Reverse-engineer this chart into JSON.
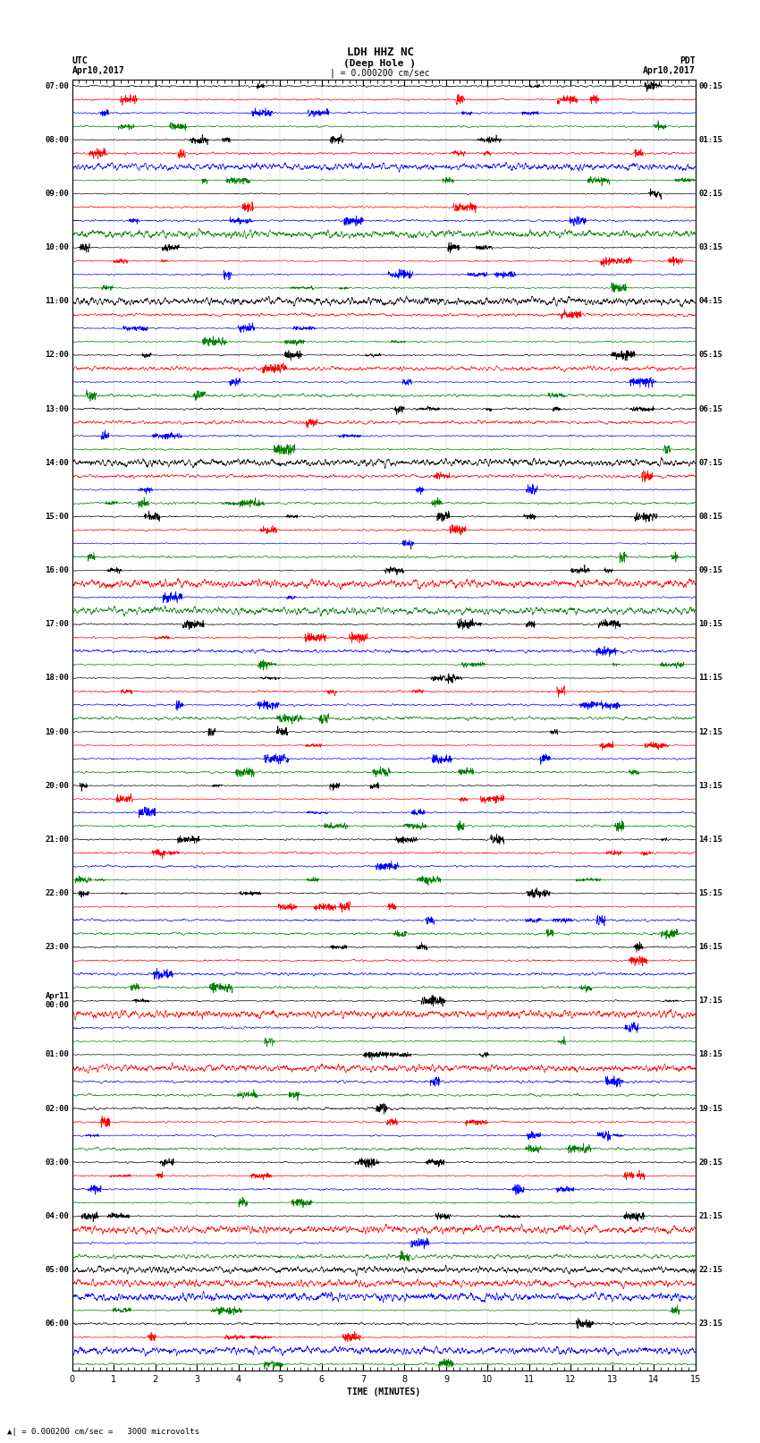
{
  "title_line1": "LDH HHZ NC",
  "title_line2": "(Deep Hole )",
  "scale_label": "= 0.000200 cm/sec",
  "bottom_label": "TIME (MINUTES)",
  "bottom_note": "= 0.000200 cm/sec =   3000 microvolts",
  "utc_times": [
    "07:00",
    "08:00",
    "09:00",
    "10:00",
    "11:00",
    "12:00",
    "13:00",
    "14:00",
    "15:00",
    "16:00",
    "17:00",
    "18:00",
    "19:00",
    "20:00",
    "21:00",
    "22:00",
    "23:00",
    "Apr11\n00:00",
    "01:00",
    "02:00",
    "03:00",
    "04:00",
    "05:00",
    "06:00"
  ],
  "pdt_times": [
    "00:15",
    "01:15",
    "02:15",
    "03:15",
    "04:15",
    "05:15",
    "06:15",
    "07:15",
    "08:15",
    "09:15",
    "10:15",
    "11:15",
    "12:15",
    "13:15",
    "14:15",
    "15:15",
    "16:15",
    "17:15",
    "18:15",
    "19:15",
    "20:15",
    "21:15",
    "22:15",
    "23:15"
  ],
  "n_groups": 24,
  "colors": [
    "black",
    "red",
    "blue",
    "green"
  ],
  "bg_color": "white",
  "x_min": 0,
  "x_max": 15,
  "x_ticks": [
    0,
    1,
    2,
    3,
    4,
    5,
    6,
    7,
    8,
    9,
    10,
    11,
    12,
    13,
    14,
    15
  ],
  "fig_width": 8.5,
  "fig_height": 16.13,
  "dpi": 100
}
